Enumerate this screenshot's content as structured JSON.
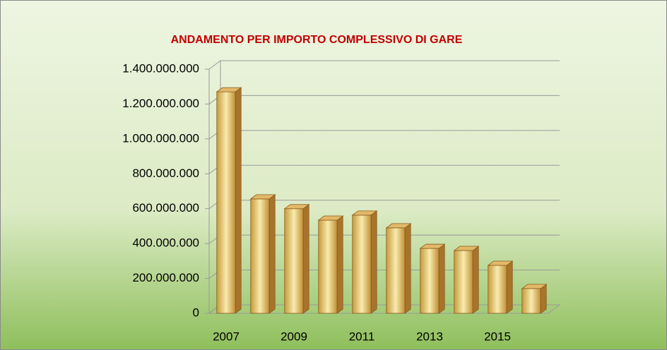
{
  "chart_data": {
    "type": "bar3d",
    "title": "ANDAMENTO PER IMPORTO COMPLESSIVO DI GARE",
    "categories": [
      "2007",
      null,
      "2009",
      null,
      "2011",
      null,
      "2013",
      null,
      "2015",
      null
    ],
    "values": [
      1270000000,
      656000000,
      600000000,
      534000000,
      563000000,
      490000000,
      372000000,
      360000000,
      275000000,
      142000000
    ],
    "color": "#e8c96a",
    "ylim": [
      0,
      1400000000
    ],
    "yticks": [
      0,
      {
        "value": 200000000,
        "label": "200.000.000"
      },
      {
        "value": 400000000,
        "label": "400.000.000"
      },
      {
        "value": 600000000,
        "label": "600.000.000"
      },
      {
        "value": 800000000,
        "label": "800.000.000"
      },
      {
        "value": 1000000000,
        "label": "1.000.000.000"
      },
      {
        "value": 1200000000,
        "label": "1.200.000.000"
      },
      {
        "value": 1400000000,
        "label": "1.400.000.000"
      }
    ],
    "grid": true
  }
}
